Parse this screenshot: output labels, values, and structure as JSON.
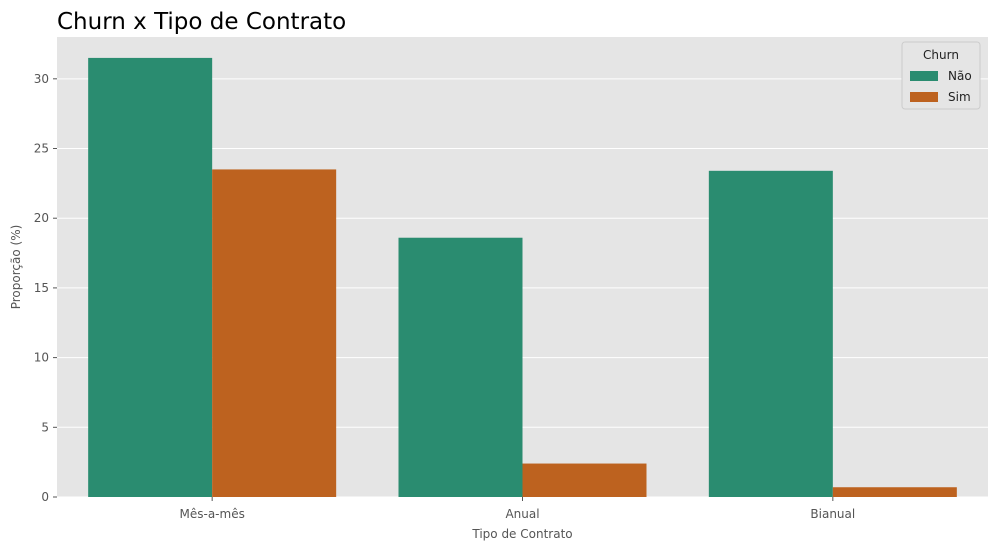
{
  "chart_data": {
    "type": "bar",
    "title": "Churn x Tipo de Contrato",
    "xlabel": "Tipo de Contrato",
    "ylabel": "Proporção (%)",
    "categories": [
      "Mês-a-mês",
      "Anual",
      "Bianual"
    ],
    "series": [
      {
        "name": "Não",
        "values": [
          31.5,
          18.6,
          23.4
        ],
        "color": "#2a8c70"
      },
      {
        "name": "Sim",
        "values": [
          23.5,
          2.4,
          0.7
        ],
        "color": "#bd621f"
      }
    ],
    "ylim": [
      0,
      33.0
    ],
    "yticks": [
      0,
      5,
      10,
      15,
      20,
      25,
      30
    ],
    "grid": true,
    "legend": {
      "title": "Churn",
      "position": "top-right"
    },
    "plot_background": "#e5e5e5"
  }
}
